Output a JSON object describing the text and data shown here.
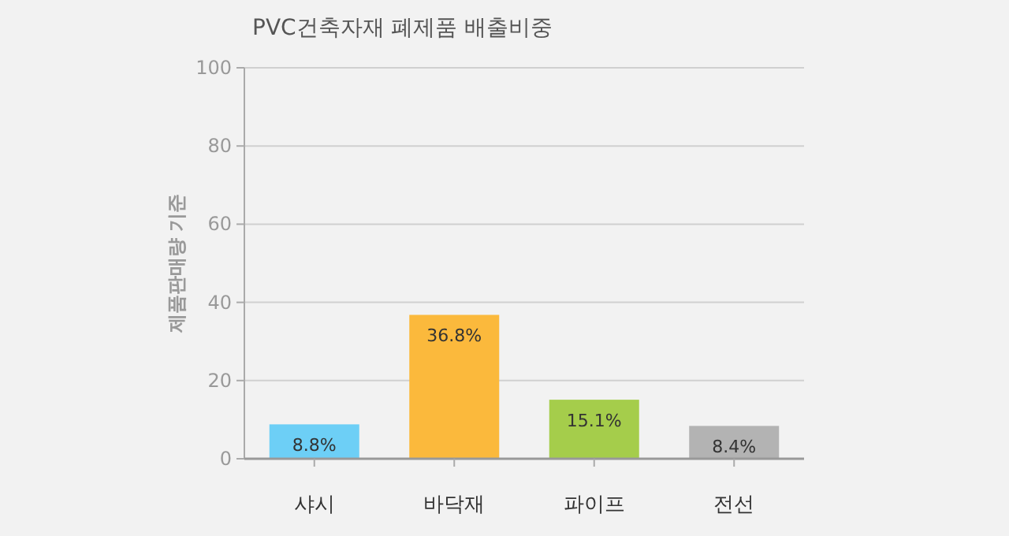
{
  "chart_data": {
    "type": "bar",
    "title": "PVC건축자재 폐제품 배출비중",
    "ylabel": "제품판매량 기준",
    "categories": [
      "샤시",
      "바닥재",
      "파이프",
      "전선"
    ],
    "values": [
      8.8,
      36.8,
      15.1,
      8.4
    ],
    "colors": [
      "#6dcff6",
      "#fbb93c",
      "#a5cd4b",
      "#b3b3b3"
    ],
    "value_labels": [
      "8.8%",
      "36.8%",
      "15.1%",
      "8.4%"
    ],
    "ylim": [
      0,
      100
    ],
    "yticks": [
      0,
      20,
      40,
      60,
      80,
      100
    ],
    "grid": "y"
  }
}
